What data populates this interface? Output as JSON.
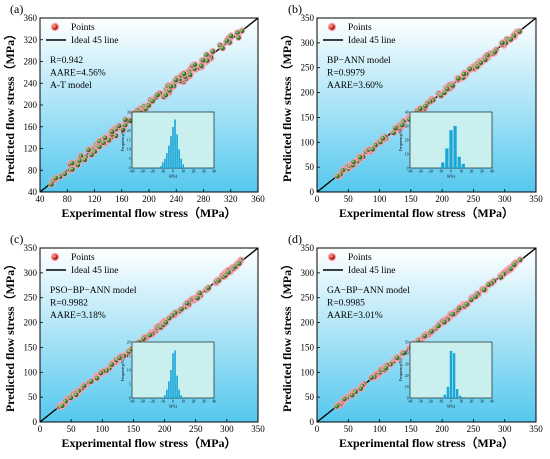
{
  "colors": {
    "panel_bg_top": "#ffffff",
    "panel_bg_bottom": "#55c8ee",
    "point_fill": "#3d7a2f",
    "point_halo": "#ff9fb0",
    "ideal_line": "#000000",
    "hist_bar": "#1aa7d8",
    "hist_bg": "#c9f0ee"
  },
  "chart_data": [
    {
      "type": "scatter",
      "panel_label": "(a)",
      "xlabel": "Experimental flow stress（MPa）",
      "ylabel": "Predicted flow stress（MPa）",
      "xlim": [
        40,
        360
      ],
      "ylim": [
        40,
        360
      ],
      "xticks": [
        "40",
        "80",
        "120",
        "160",
        "200",
        "240",
        "280",
        "320",
        "360"
      ],
      "yticks": [
        "40",
        "80",
        "120",
        "160",
        "200",
        "240",
        "280",
        "320",
        "360"
      ],
      "legend": {
        "points": "Points",
        "line": "Ideal 45 line",
        "position": "top-left"
      },
      "stats": [
        "R=0.942",
        "AARE=4.56%",
        "A-T model"
      ],
      "scatter_noise": 8,
      "inset_histogram": {
        "xlabel": "δ(%)",
        "ylabel": "Frequency(%)",
        "xticks": [
          "-40",
          "-30",
          "-20",
          "-10",
          "0",
          "10",
          "20",
          "30",
          "40"
        ],
        "yticks": [
          "0",
          "5",
          "10",
          "15",
          "20",
          "25",
          "30"
        ],
        "bin_centers": [
          -12,
          -10,
          -8,
          -6,
          -4,
          -2,
          0,
          2,
          4,
          6,
          8,
          10
        ],
        "values": [
          1,
          3,
          5,
          8,
          12,
          17,
          22,
          26,
          18,
          10,
          5,
          2
        ],
        "ymax": 30
      }
    },
    {
      "type": "scatter",
      "panel_label": "(b)",
      "xlabel": "Experimental flow stress（MPa）",
      "ylabel": "Predicted flow stress（MPa）",
      "xlim": [
        0,
        350
      ],
      "ylim": [
        0,
        350
      ],
      "xticks": [
        "0",
        "50",
        "100",
        "150",
        "200",
        "250",
        "300",
        "350"
      ],
      "yticks": [
        "0",
        "50",
        "100",
        "150",
        "200",
        "250",
        "300",
        "350"
      ],
      "legend": {
        "points": "Points",
        "line": "Ideal 45 line",
        "position": "top-left"
      },
      "stats": [
        "BP−ANN model",
        "R=0.9979",
        "AARE=3.60%"
      ],
      "scatter_noise": 4,
      "inset_histogram": {
        "xlabel": "δ(%)",
        "ylabel": "Frequency(%)",
        "xticks": [
          "-40",
          "-30",
          "-20",
          "-10",
          "0",
          "10",
          "20",
          "30",
          "40"
        ],
        "yticks": [
          "0",
          "10",
          "20",
          "30",
          "40"
        ],
        "bin_centers": [
          -8,
          -4,
          0,
          4,
          8,
          12
        ],
        "values": [
          4,
          14,
          27,
          30,
          8,
          3
        ],
        "ymax": 40
      }
    },
    {
      "type": "scatter",
      "panel_label": "(c)",
      "xlabel": "Experimental flow stress（MPa）",
      "ylabel": "Predicted flow stress（MPa）",
      "xlim": [
        0,
        350
      ],
      "ylim": [
        0,
        350
      ],
      "xticks": [
        "0",
        "50",
        "100",
        "150",
        "200",
        "250",
        "300",
        "350"
      ],
      "yticks": [
        "0",
        "50",
        "100",
        "150",
        "200",
        "250",
        "300",
        "350"
      ],
      "legend": {
        "points": "Points",
        "line": "Ideal 45 line",
        "position": "top-left"
      },
      "stats": [
        "PSO−BP−ANN model",
        "R=0.9982",
        "AARE=3.18%"
      ],
      "scatter_noise": 3.5,
      "inset_histogram": {
        "xlabel": "δ(%)",
        "ylabel": "Frequency(%)",
        "xticks": [
          "-40",
          "-30",
          "-20",
          "-10",
          "0",
          "10",
          "20",
          "30",
          "40"
        ],
        "yticks": [
          "0",
          "5",
          "10",
          "15",
          "20"
        ],
        "bin_centers": [
          -8,
          -6,
          -4,
          -2,
          0,
          2,
          4,
          6,
          8
        ],
        "values": [
          1,
          3,
          6,
          10,
          16,
          17,
          8,
          3,
          1
        ],
        "ymax": 20
      }
    },
    {
      "type": "scatter",
      "panel_label": "(d)",
      "xlabel": "Experimental flow stress（MPa）",
      "ylabel": "Predicted flow stress（MPa）",
      "xlim": [
        0,
        350
      ],
      "ylim": [
        0,
        350
      ],
      "xticks": [
        "0",
        "50",
        "100",
        "150",
        "200",
        "250",
        "300",
        "350"
      ],
      "yticks": [
        "0",
        "50",
        "100",
        "150",
        "200",
        "250",
        "300",
        "350"
      ],
      "legend": {
        "points": "Points",
        "line": "Ideal 45 line",
        "position": "top-left"
      },
      "stats": [
        "GA−BP−ANN model",
        "R=0.9985",
        "AARE=3.01%"
      ],
      "scatter_noise": 3,
      "inset_histogram": {
        "xlabel": "δ(%)",
        "ylabel": "Frequency(%)",
        "xticks": [
          "-40",
          "-30",
          "-20",
          "-10",
          "0",
          "10",
          "20",
          "30",
          "40"
        ],
        "yticks": [
          "0",
          "10",
          "20",
          "30",
          "40",
          "50"
        ],
        "bin_centers": [
          -6,
          -3,
          0,
          3,
          6,
          9
        ],
        "values": [
          3,
          10,
          42,
          40,
          8,
          2
        ],
        "ymax": 50
      }
    }
  ]
}
